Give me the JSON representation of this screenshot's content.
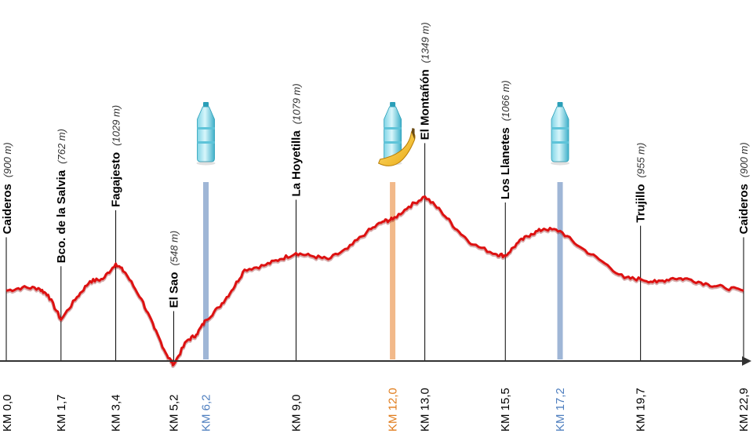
{
  "chart_data": {
    "type": "line",
    "title": "",
    "xlabel": "",
    "ylabel": "",
    "x_unit": "km",
    "y_unit": "m",
    "xlim": [
      0,
      22.9
    ],
    "ylim": [
      340,
      1500
    ],
    "colors": {
      "profile": "#dd1111",
      "water": "#9fb6d6",
      "food": "#f2b98a",
      "axis": "#333333",
      "marker": "#000000"
    },
    "waypoints": [
      {
        "name": "Caideros",
        "altitude": "(900 m)",
        "km": 0.0,
        "km_label": "KM 0,0"
      },
      {
        "name": "Bco. de  la  Salvia",
        "altitude": "(762 m)",
        "km": 1.7,
        "km_label": "KM 1,7"
      },
      {
        "name": "Fagajesto",
        "altitude": "(1029 m)",
        "km": 3.4,
        "km_label": "KM 3,4"
      },
      {
        "name": "El Sao",
        "altitude": "(548 m)",
        "km": 5.2,
        "km_label": "KM 5,2"
      },
      {
        "name": "La  Hoyetilla",
        "altitude": "(1079 m)",
        "km": 9.0,
        "km_label": "KM 9,0"
      },
      {
        "name": "El  Montañón",
        "altitude": "(1349 m)",
        "km": 13.0,
        "km_label": "KM 13,0"
      },
      {
        "name": "Los  Llanetes",
        "altitude": "(1066 m)",
        "km": 15.5,
        "km_label": "KM 15,5"
      },
      {
        "name": "Trujillo",
        "altitude": "(955 m)",
        "km": 19.7,
        "km_label": "KM 19,7"
      },
      {
        "name": "Caideros",
        "altitude": "(900 m)",
        "km": 22.9,
        "km_label": "KM 22,9"
      }
    ],
    "supply_points": [
      {
        "type": "water",
        "km": 6.2,
        "km_label": "KM 6,2",
        "icon": "water-bottle-icon"
      },
      {
        "type": "food",
        "km": 12.0,
        "km_label": "KM 12,0",
        "icon": "water-bottle-banana-icon"
      },
      {
        "type": "water",
        "km": 17.2,
        "km_label": "KM 17,2",
        "icon": "water-bottle-icon"
      }
    ],
    "profile": [
      {
        "x": 0.0,
        "y": 900
      },
      {
        "x": 0.5,
        "y": 915
      },
      {
        "x": 1.0,
        "y": 912
      },
      {
        "x": 1.3,
        "y": 880
      },
      {
        "x": 1.7,
        "y": 762
      },
      {
        "x": 2.2,
        "y": 870
      },
      {
        "x": 2.6,
        "y": 945
      },
      {
        "x": 3.0,
        "y": 955
      },
      {
        "x": 3.4,
        "y": 1029
      },
      {
        "x": 3.7,
        "y": 985
      },
      {
        "x": 4.2,
        "y": 860
      },
      {
        "x": 4.6,
        "y": 720
      },
      {
        "x": 5.0,
        "y": 590
      },
      {
        "x": 5.2,
        "y": 548
      },
      {
        "x": 5.6,
        "y": 660
      },
      {
        "x": 5.9,
        "y": 690
      },
      {
        "x": 6.2,
        "y": 760
      },
      {
        "x": 6.6,
        "y": 820
      },
      {
        "x": 7.0,
        "y": 900
      },
      {
        "x": 7.4,
        "y": 1000
      },
      {
        "x": 8.0,
        "y": 1020
      },
      {
        "x": 8.5,
        "y": 1050
      },
      {
        "x": 9.0,
        "y": 1079
      },
      {
        "x": 9.5,
        "y": 1065
      },
      {
        "x": 10.0,
        "y": 1050
      },
      {
        "x": 10.6,
        "y": 1100
      },
      {
        "x": 11.2,
        "y": 1180
      },
      {
        "x": 11.7,
        "y": 1230
      },
      {
        "x": 12.0,
        "y": 1240
      },
      {
        "x": 12.5,
        "y": 1300
      },
      {
        "x": 13.0,
        "y": 1349
      },
      {
        "x": 13.5,
        "y": 1280
      },
      {
        "x": 14.0,
        "y": 1190
      },
      {
        "x": 14.5,
        "y": 1120
      },
      {
        "x": 15.2,
        "y": 1075
      },
      {
        "x": 15.5,
        "y": 1066
      },
      {
        "x": 15.9,
        "y": 1130
      },
      {
        "x": 16.3,
        "y": 1170
      },
      {
        "x": 16.7,
        "y": 1195
      },
      {
        "x": 17.2,
        "y": 1185
      },
      {
        "x": 17.8,
        "y": 1110
      },
      {
        "x": 18.5,
        "y": 1040
      },
      {
        "x": 19.2,
        "y": 960
      },
      {
        "x": 19.7,
        "y": 955
      },
      {
        "x": 20.2,
        "y": 940
      },
      {
        "x": 20.7,
        "y": 960
      },
      {
        "x": 21.2,
        "y": 955
      },
      {
        "x": 21.8,
        "y": 930
      },
      {
        "x": 22.3,
        "y": 915
      },
      {
        "x": 22.9,
        "y": 900
      }
    ]
  }
}
